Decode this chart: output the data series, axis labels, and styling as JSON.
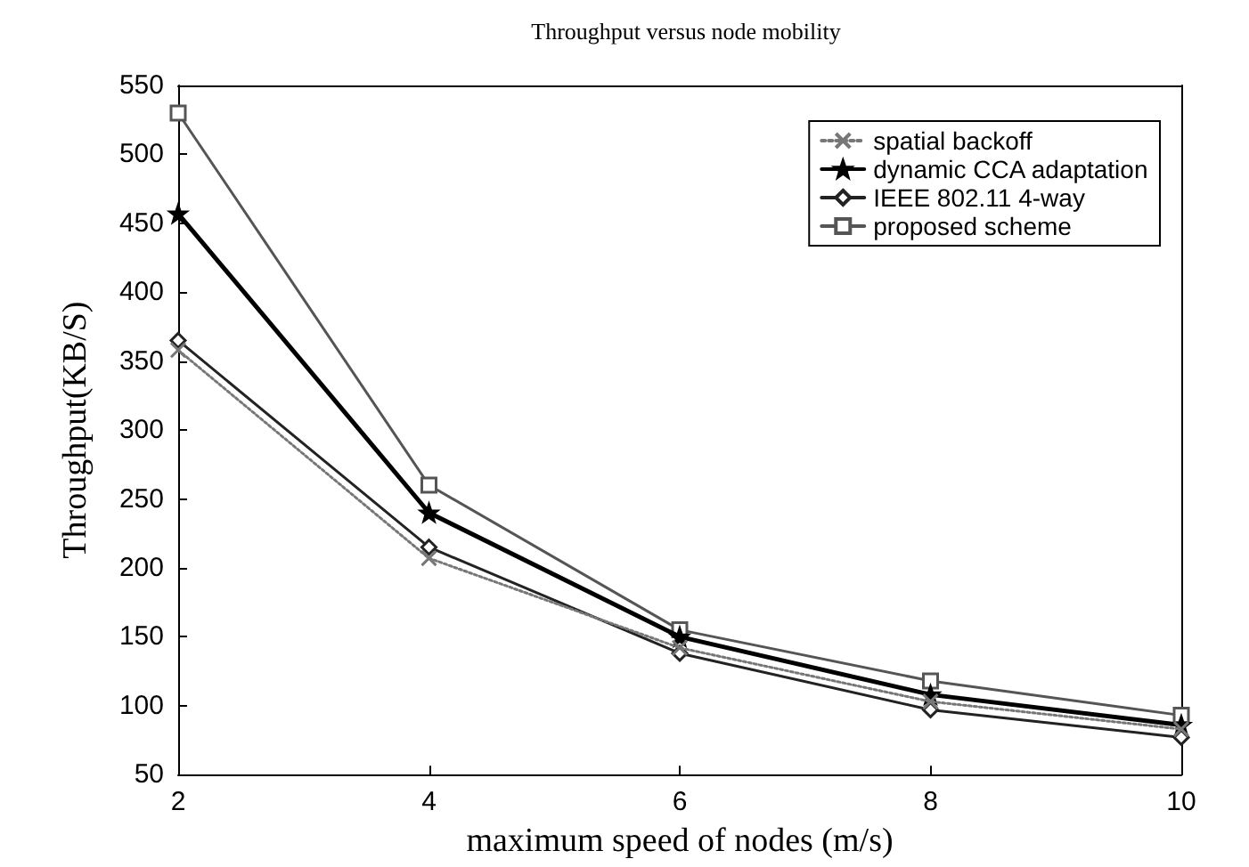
{
  "chart_data": {
    "type": "line",
    "title": "Throughput versus node mobility",
    "xlabel": "maximum speed of nodes (m/s)",
    "ylabel": "Throughput(KB/S)",
    "x": [
      2,
      4,
      6,
      8,
      10
    ],
    "series": [
      {
        "name": "spatial backoff",
        "color": "#777777",
        "marker": "cross",
        "line_style": "dotted",
        "values": [
          358,
          207,
          142,
          103,
          83
        ]
      },
      {
        "name": "dynamic CCA adaptation",
        "color": "#000000",
        "marker": "star",
        "line_style": "solid",
        "values": [
          457,
          240,
          150,
          108,
          86
        ]
      },
      {
        "name": "IEEE 802.11 4-way",
        "color": "#222222",
        "marker": "diamond",
        "line_style": "solid",
        "values": [
          365,
          215,
          138,
          97,
          77
        ]
      },
      {
        "name": "proposed scheme",
        "color": "#555555",
        "marker": "square",
        "line_style": "solid",
        "values": [
          530,
          260,
          155,
          118,
          93
        ]
      }
    ],
    "xlim": [
      2,
      10
    ],
    "xticks": [
      2,
      4,
      6,
      8,
      10
    ],
    "ylim": [
      50,
      550
    ],
    "yticks": [
      50,
      100,
      150,
      200,
      250,
      300,
      350,
      400,
      450,
      500,
      550
    ],
    "grid": false,
    "legend": "top right"
  }
}
